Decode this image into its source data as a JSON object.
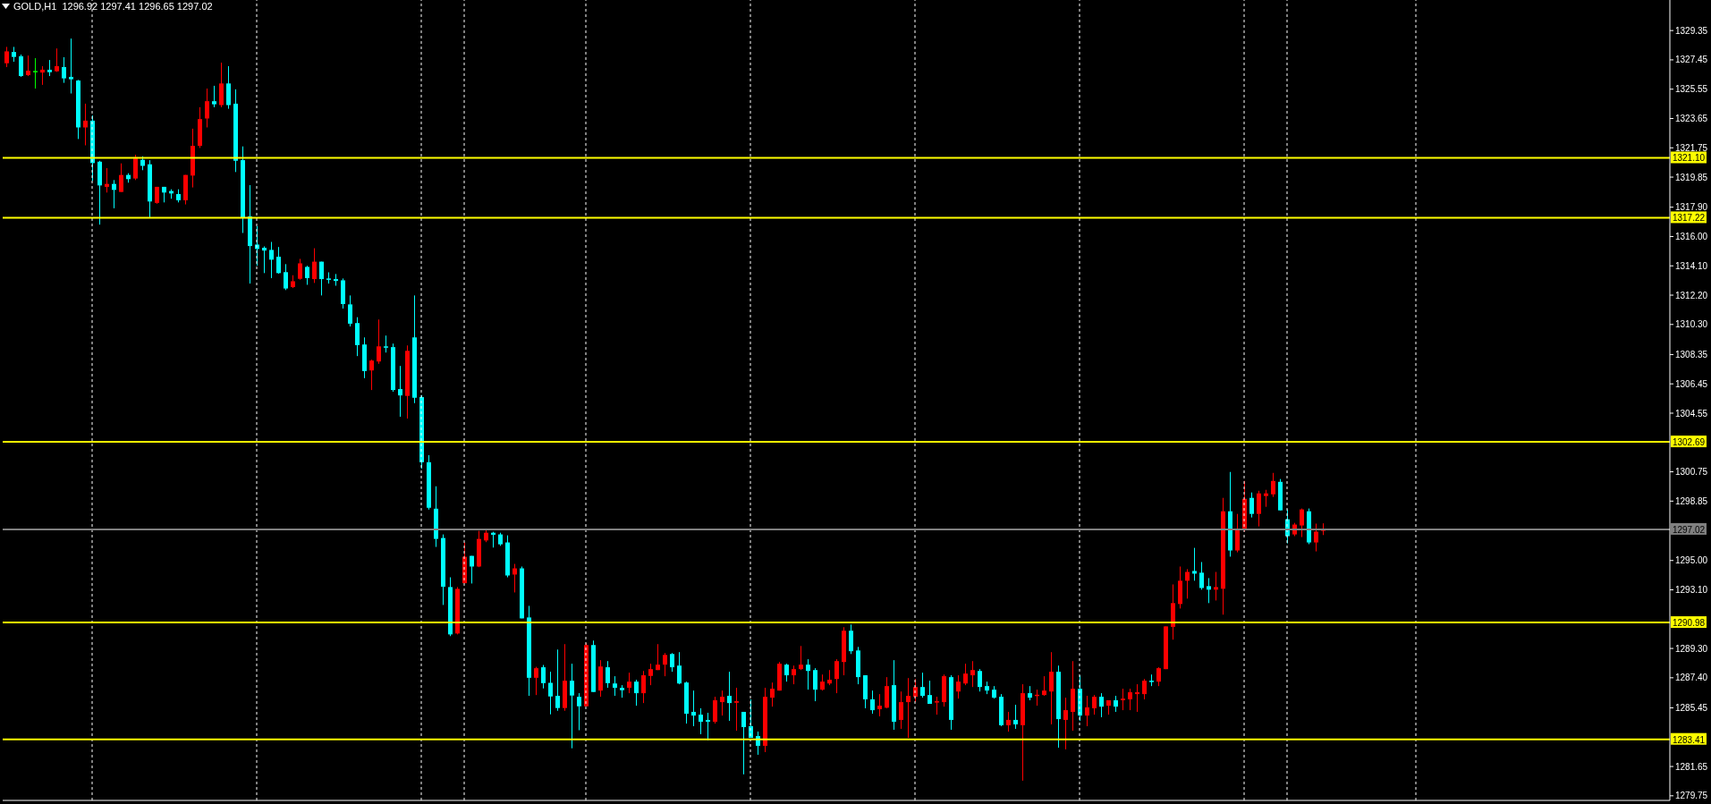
{
  "chart_data": {
    "type": "candlestick",
    "title": "GOLD,H1  1296.92 1297.41 1296.65 1297.02",
    "categories": [
      null,
      null,
      null,
      null,
      null,
      null,
      null,
      null,
      null,
      null,
      null,
      null,
      null,
      null,
      null,
      null,
      null,
      null,
      null,
      null,
      null,
      null,
      null,
      null,
      null,
      null,
      null,
      null,
      null,
      null,
      null,
      null,
      null,
      null,
      null,
      null,
      null,
      null,
      null,
      null,
      null,
      null,
      null,
      null,
      null,
      null,
      null,
      null,
      null,
      null,
      null,
      null,
      null,
      null,
      null,
      null,
      null,
      null,
      null,
      null,
      null,
      null,
      null,
      null,
      null,
      null,
      null,
      null,
      null,
      null,
      null,
      null,
      null,
      null,
      null,
      null,
      null,
      null,
      null,
      null,
      null,
      null,
      null,
      null,
      null,
      null,
      null,
      null,
      null,
      null,
      null,
      null,
      null,
      null,
      null,
      null,
      null,
      null,
      null,
      null,
      null,
      null,
      null,
      null,
      null,
      null,
      null,
      null,
      null,
      null,
      null,
      null,
      null,
      null,
      null,
      null,
      null,
      null,
      null,
      null,
      null,
      null,
      null,
      null,
      null,
      null,
      null,
      null,
      null,
      null,
      null,
      null,
      null,
      null,
      null,
      null,
      null,
      null,
      null,
      null,
      null,
      null,
      null,
      null,
      null,
      null,
      null,
      null,
      null,
      null,
      null,
      null,
      null,
      null,
      null,
      null,
      null,
      null,
      null,
      null,
      null,
      null,
      null,
      null,
      null,
      null,
      null,
      null,
      null,
      null,
      null,
      null,
      null,
      null,
      null,
      null,
      null,
      null,
      null,
      null,
      null,
      null,
      null,
      null,
      null,
      null,
      null,
      null,
      null,
      null,
      null,
      null,
      null,
      null,
      null,
      null,
      null,
      null,
      null,
      null,
      null,
      null,
      null,
      null,
      null,
      null,
      null,
      null,
      null,
      null,
      null,
      null,
      null,
      null,
      null,
      null,
      null,
      null,
      null,
      null,
      null,
      null,
      null,
      null,
      null,
      null,
      null,
      null,
      null,
      null,
      null,
      null,
      null
    ],
    "ohlc": [
      [
        1327.23,
        1328.29,
        1326.98,
        1328.0
      ],
      [
        1327.96,
        1328.29,
        1327.33,
        1327.64
      ],
      [
        1327.68,
        1327.79,
        1326.35,
        1326.4
      ],
      [
        1326.46,
        1327.73,
        1326.4,
        1326.75
      ],
      [
        1326.73,
        1327.56,
        1325.59,
        1326.73
      ],
      [
        1326.63,
        1327.04,
        1325.83,
        1326.81
      ],
      [
        1326.81,
        1327.44,
        1326.4,
        1326.65
      ],
      [
        1326.71,
        1328.19,
        1326.67,
        1327.04
      ],
      [
        1326.98,
        1327.62,
        1325.96,
        1326.25
      ],
      [
        1326.35,
        1328.83,
        1325.27,
        1326.19
      ],
      [
        1326.11,
        1326.15,
        1322.32,
        1323.07
      ],
      [
        1323.07,
        1324.61,
        1321.91,
        1323.51
      ],
      [
        1323.51,
        1323.84,
        1319.6,
        1320.76
      ],
      [
        1320.85,
        1320.91,
        1316.77,
        1319.31
      ],
      [
        1319.22,
        1320.43,
        1318.85,
        1319.41
      ],
      [
        1319.41,
        1319.66,
        1317.83,
        1319.02
      ],
      [
        1318.89,
        1320.74,
        1318.89,
        1319.99
      ],
      [
        1319.99,
        1320.1,
        1319.49,
        1319.72
      ],
      [
        1319.76,
        1321.3,
        1319.66,
        1321.14
      ],
      [
        1320.97,
        1321.2,
        1320.3,
        1320.58
      ],
      [
        1320.68,
        1320.95,
        1317.21,
        1318.27
      ],
      [
        1318.18,
        1319.22,
        1318.12,
        1319.22
      ],
      [
        1319.22,
        1319.22,
        1318.21,
        1318.85
      ],
      [
        1318.95,
        1319.06,
        1318.45,
        1318.79
      ],
      [
        1318.75,
        1319.06,
        1318.21,
        1318.35
      ],
      [
        1318.35,
        1319.99,
        1318.08,
        1319.99
      ],
      [
        1319.95,
        1322.99,
        1319.18,
        1321.88
      ],
      [
        1321.88,
        1324.38,
        1321.74,
        1323.61
      ],
      [
        1323.65,
        1325.59,
        1323.07,
        1324.77
      ],
      [
        1324.77,
        1325.77,
        1324.38,
        1324.57
      ],
      [
        1324.52,
        1327.27,
        1324.38,
        1325.92
      ],
      [
        1325.92,
        1327.04,
        1324.28,
        1324.52
      ],
      [
        1324.61,
        1325.54,
        1320.18,
        1320.91
      ],
      [
        1320.95,
        1321.84,
        1316.23,
        1317.19
      ],
      [
        1317.31,
        1319.33,
        1312.95,
        1315.38
      ],
      [
        1315.48,
        1316.67,
        1314.11,
        1315.19
      ],
      [
        1315.27,
        1315.36,
        1313.63,
        1315.09
      ],
      [
        1315.13,
        1315.65,
        1313.3,
        1314.5
      ],
      [
        1314.69,
        1315.32,
        1313.59,
        1313.63
      ],
      [
        1313.69,
        1314.21,
        1312.53,
        1312.63
      ],
      [
        1312.72,
        1313.49,
        1312.66,
        1313.1
      ],
      [
        1313.26,
        1314.55,
        1313.2,
        1314.26
      ],
      [
        1314.03,
        1314.1,
        1312.87,
        1313.3
      ],
      [
        1313.24,
        1315.24,
        1312.99,
        1314.37
      ],
      [
        1314.37,
        1314.37,
        1312.18,
        1313.24
      ],
      [
        1313.28,
        1313.68,
        1312.95,
        1313.2
      ],
      [
        1313.24,
        1313.57,
        1312.81,
        1313.12
      ],
      [
        1313.16,
        1313.28,
        1311.33,
        1311.62
      ],
      [
        1311.6,
        1312.18,
        1310.17,
        1310.35
      ],
      [
        1310.39,
        1310.77,
        1308.25,
        1308.96
      ],
      [
        1309.0,
        1309.46,
        1306.82,
        1307.28
      ],
      [
        1307.32,
        1308.02,
        1306.05,
        1307.96
      ],
      [
        1307.9,
        1310.62,
        1307.75,
        1308.88
      ],
      [
        1308.88,
        1309.58,
        1308.48,
        1308.81
      ],
      [
        1308.83,
        1309.06,
        1305.94,
        1306.05
      ],
      [
        1306.11,
        1307.61,
        1304.32,
        1305.7
      ],
      [
        1305.67,
        1308.94,
        1304.2,
        1308.59
      ],
      [
        1309.46,
        1312.18,
        1305.2,
        1305.55
      ],
      [
        1305.59,
        1305.72,
        1300.96,
        1301.37
      ],
      [
        1301.37,
        1301.83,
        1298.3,
        1298.42
      ],
      [
        1298.36,
        1299.81,
        1295.88,
        1296.4
      ],
      [
        1296.46,
        1296.69,
        1292.12,
        1293.3
      ],
      [
        1293.28,
        1293.91,
        1290.1,
        1290.21
      ],
      [
        1290.27,
        1293.28,
        1290.21,
        1293.16
      ],
      [
        1293.53,
        1296.17,
        1293.53,
        1295.24
      ],
      [
        1295.3,
        1295.3,
        1293.51,
        1294.61
      ],
      [
        1294.61,
        1296.92,
        1294.57,
        1296.4
      ],
      [
        1296.3,
        1297.03,
        1296.19,
        1296.8
      ],
      [
        1296.8,
        1296.86,
        1295.84,
        1296.67
      ],
      [
        1296.69,
        1296.8,
        1295.95,
        1296.05
      ],
      [
        1296.17,
        1296.63,
        1293.91,
        1294.03
      ],
      [
        1294.09,
        1294.78,
        1292.93,
        1294.49
      ],
      [
        1294.49,
        1294.61,
        1291.25,
        1291.25
      ],
      [
        1291.31,
        1292.06,
        1286.23,
        1287.4
      ],
      [
        1287.4,
        1288.11,
        1286.28,
        1288.02
      ],
      [
        1288.08,
        1288.23,
        1286.71,
        1287.05
      ],
      [
        1287.07,
        1287.79,
        1285.03,
        1286.19
      ],
      [
        1286.23,
        1289.23,
        1285.26,
        1285.44
      ],
      [
        1285.44,
        1289.58,
        1285.26,
        1287.21
      ],
      [
        1287.21,
        1288.31,
        1282.83,
        1286.25
      ],
      [
        1286.17,
        1286.4,
        1284.0,
        1285.55
      ],
      [
        1285.55,
        1289.64,
        1285.55,
        1289.52
      ],
      [
        1289.52,
        1289.81,
        1286.48,
        1286.48
      ],
      [
        1286.57,
        1288.54,
        1286.17,
        1288.13
      ],
      [
        1288.08,
        1288.48,
        1286.75,
        1287.05
      ],
      [
        1287.03,
        1287.5,
        1286.23,
        1286.75
      ],
      [
        1286.75,
        1286.92,
        1286.11,
        1286.59
      ],
      [
        1286.75,
        1287.73,
        1286.4,
        1287.15
      ],
      [
        1287.15,
        1287.27,
        1285.59,
        1286.4
      ],
      [
        1286.4,
        1287.84,
        1285.76,
        1287.56
      ],
      [
        1287.52,
        1288.31,
        1286.92,
        1287.96
      ],
      [
        1287.9,
        1289.58,
        1287.9,
        1288.25
      ],
      [
        1288.25,
        1289.0,
        1287.5,
        1288.88
      ],
      [
        1288.94,
        1289.0,
        1287.79,
        1288.08
      ],
      [
        1288.19,
        1289.06,
        1286.98,
        1287.03
      ],
      [
        1287.09,
        1287.15,
        1284.43,
        1285.07
      ],
      [
        1285.19,
        1286.57,
        1284.26,
        1284.95
      ],
      [
        1285.01,
        1285.42,
        1283.74,
        1284.55
      ],
      [
        1284.67,
        1285.13,
        1283.36,
        1284.55
      ],
      [
        1284.55,
        1286.17,
        1284.43,
        1285.94
      ],
      [
        1285.82,
        1286.57,
        1284.95,
        1286.17
      ],
      [
        1286.23,
        1287.79,
        1284.61,
        1285.76
      ],
      [
        1285.78,
        1286.75,
        1283.97,
        1285.88
      ],
      [
        1285.19,
        1285.19,
        1281.14,
        1284.2
      ],
      [
        1284.26,
        1286.0,
        1283.51,
        1283.51
      ],
      [
        1283.62,
        1283.91,
        1282.41,
        1282.99
      ],
      [
        1282.99,
        1286.75,
        1282.58,
        1286.17
      ],
      [
        1286.11,
        1287.09,
        1285.53,
        1286.69
      ],
      [
        1286.57,
        1288.42,
        1286.57,
        1288.31
      ],
      [
        1288.25,
        1288.31,
        1287.15,
        1287.56
      ],
      [
        1287.56,
        1288.19,
        1286.98,
        1287.96
      ],
      [
        1287.96,
        1289.46,
        1287.9,
        1288.25
      ],
      [
        1288.25,
        1288.6,
        1286.63,
        1287.84
      ],
      [
        1287.9,
        1288.02,
        1285.88,
        1286.63
      ],
      [
        1286.63,
        1287.61,
        1286.57,
        1287.15
      ],
      [
        1287.03,
        1287.9,
        1286.92,
        1287.27
      ],
      [
        1287.32,
        1288.6,
        1286.4,
        1288.48
      ],
      [
        1288.42,
        1290.68,
        1287.56,
        1290.45
      ],
      [
        1290.45,
        1290.85,
        1288.94,
        1289.12
      ],
      [
        1289.17,
        1289.4,
        1286.98,
        1287.44
      ],
      [
        1287.56,
        1287.56,
        1285.42,
        1286.0
      ],
      [
        1286.0,
        1286.57,
        1285.07,
        1285.3
      ],
      [
        1285.36,
        1286.34,
        1284.9,
        1285.59
      ],
      [
        1285.46,
        1287.44,
        1285.42,
        1286.86
      ],
      [
        1286.92,
        1288.54,
        1284.03,
        1284.55
      ],
      [
        1284.67,
        1286.51,
        1284.09,
        1285.82
      ],
      [
        1285.82,
        1287.38,
        1283.51,
        1286.23
      ],
      [
        1286.17,
        1287.32,
        1285.82,
        1286.8
      ],
      [
        1286.8,
        1287.73,
        1286.11,
        1286.23
      ],
      [
        1286.28,
        1287.21,
        1285.71,
        1285.71
      ],
      [
        1285.84,
        1286.17,
        1285.01,
        1285.88
      ],
      [
        1285.82,
        1287.61,
        1285.53,
        1287.5
      ],
      [
        1287.44,
        1287.56,
        1284.03,
        1284.67
      ],
      [
        1286.51,
        1287.56,
        1286.05,
        1287.15
      ],
      [
        1287.03,
        1288.31,
        1286.92,
        1287.67
      ],
      [
        1287.56,
        1288.48,
        1286.8,
        1287.9
      ],
      [
        1287.84,
        1287.96,
        1286.51,
        1286.8
      ],
      [
        1286.86,
        1287.15,
        1286.34,
        1286.57
      ],
      [
        1286.63,
        1286.86,
        1286.05,
        1286.11
      ],
      [
        1286.17,
        1286.34,
        1284.26,
        1284.32
      ],
      [
        1284.32,
        1285.19,
        1283.91,
        1284.67
      ],
      [
        1284.67,
        1285.65,
        1284.09,
        1284.38
      ],
      [
        1284.32,
        1286.98,
        1280.73,
        1286.4
      ],
      [
        1286.4,
        1286.86,
        1285.94,
        1286.11
      ],
      [
        1286.26,
        1286.63,
        1285.59,
        1286.3
      ],
      [
        1286.28,
        1287.5,
        1286.23,
        1286.57
      ],
      [
        1286.51,
        1289.06,
        1284.38,
        1287.79
      ],
      [
        1287.79,
        1288.19,
        1282.87,
        1284.72
      ],
      [
        1284.67,
        1286.11,
        1282.76,
        1285.3
      ],
      [
        1285.19,
        1288.48,
        1283.97,
        1286.69
      ],
      [
        1286.69,
        1287.56,
        1284.61,
        1284.95
      ],
      [
        1284.95,
        1286.23,
        1284.26,
        1285.48
      ],
      [
        1285.42,
        1286.28,
        1285.01,
        1286.17
      ],
      [
        1286.17,
        1286.4,
        1284.84,
        1285.53
      ],
      [
        1285.59,
        1285.94,
        1285.01,
        1285.94
      ],
      [
        1285.94,
        1286.23,
        1285.19,
        1285.53
      ],
      [
        1285.94,
        1286.69,
        1285.3,
        1286.05
      ],
      [
        1286.0,
        1286.69,
        1285.3,
        1286.46
      ],
      [
        1286.34,
        1286.98,
        1285.19,
        1286.46
      ],
      [
        1286.34,
        1287.32,
        1286.0,
        1287.21
      ],
      [
        1287.21,
        1287.61,
        1286.86,
        1287.17
      ],
      [
        1287.15,
        1288.08,
        1286.86,
        1288.02
      ],
      [
        1287.96,
        1290.73,
        1287.96,
        1290.73
      ],
      [
        1290.7,
        1293.45,
        1289.87,
        1292.24
      ],
      [
        1292.18,
        1294.61,
        1291.89,
        1293.69
      ],
      [
        1293.69,
        1294.44,
        1292.53,
        1294.26
      ],
      [
        1294.32,
        1295.82,
        1293.69,
        1294.15
      ],
      [
        1294.21,
        1294.9,
        1293.11,
        1293.22
      ],
      [
        1293.34,
        1293.86,
        1292.24,
        1293.11
      ],
      [
        1293.11,
        1294.26,
        1292.41,
        1293.28
      ],
      [
        1293.17,
        1299.06,
        1291.49,
        1298.19
      ],
      [
        1298.19,
        1300.74,
        1295.25,
        1295.65
      ],
      [
        1295.65,
        1298.02,
        1295.53,
        1297.04
      ],
      [
        1296.98,
        1300.16,
        1296.87,
        1299.0
      ],
      [
        1299.06,
        1299.41,
        1297.79,
        1298.02
      ],
      [
        1298.02,
        1299.52,
        1297.21,
        1299.35
      ],
      [
        1299.18,
        1299.58,
        1298.48,
        1299.35
      ],
      [
        1299.29,
        1300.68,
        1299.12,
        1300.16
      ],
      [
        1300.1,
        1300.28,
        1298.25,
        1298.25
      ],
      [
        1297.67,
        1298.31,
        1296.11,
        1296.58
      ],
      [
        1296.69,
        1297.44,
        1296.58,
        1297.33
      ],
      [
        1297.27,
        1298.37,
        1296.52,
        1298.31
      ],
      [
        1298.19,
        1298.37,
        1296.06,
        1296.17
      ],
      [
        1296.17,
        1297.39,
        1295.59,
        1296.87
      ],
      [
        1296.92,
        1297.41,
        1296.65,
        1297.02
      ],
      null,
      null,
      null,
      null,
      null,
      null,
      null,
      null,
      null,
      null,
      null,
      null,
      null,
      null,
      null,
      null,
      null,
      null,
      null,
      null,
      null,
      null,
      null,
      null,
      null,
      null,
      null,
      null,
      null,
      null,
      null,
      null,
      null,
      null,
      null,
      null,
      null,
      null,
      null,
      null,
      null,
      null,
      null,
      null,
      null,
      null,
      null,
      null
    ],
    "colors": [
      "#ff0000",
      "#00ffff",
      "#00ffff",
      "#ff0000",
      "#00ff00",
      "#ff0000",
      "#00ffff",
      "#ff0000",
      "#00ffff",
      "#00ffff",
      "#00ffff",
      "#ff0000",
      "#00ffff",
      "#00ffff",
      "#ff0000",
      "#00ffff",
      "#ff0000",
      "#00ffff",
      "#ff0000",
      "#00ffff",
      "#00ffff",
      "#ff0000",
      "#00ffff",
      "#00ffff",
      "#00ffff",
      "#ff0000",
      "#ff0000",
      "#ff0000",
      "#ff0000",
      "#00ffff",
      "#ff0000",
      "#00ffff",
      "#00ffff",
      "#00ffff",
      "#00ffff",
      "#00ffff",
      "#00ffff",
      "#00ffff",
      "#00ffff",
      "#00ffff",
      "#ff0000",
      "#ff0000",
      "#00ffff",
      "#ff0000",
      "#00ffff",
      "#00ffff",
      "#00ffff",
      "#00ffff",
      "#00ffff",
      "#00ffff",
      "#00ffff",
      "#ff0000",
      "#ff0000",
      "#00ffff",
      "#00ffff",
      "#00ffff",
      "#ff0000",
      "#00ffff",
      "#00ffff",
      "#00ffff",
      "#00ffff",
      "#00ffff",
      "#00ffff",
      "#ff0000",
      "#ff0000",
      "#00ffff",
      "#ff0000",
      "#ff0000",
      "#00ffff",
      "#00ffff",
      "#00ffff",
      "#ff0000",
      "#00ffff",
      "#00ffff",
      "#ff0000",
      "#00ffff",
      "#00ffff",
      "#00ffff",
      "#ff0000",
      "#00ffff",
      "#00ffff",
      "#ff0000",
      "#00ffff",
      "#ff0000",
      "#00ffff",
      "#00ffff",
      "#00ffff",
      "#ff0000",
      "#00ffff",
      "#ff0000",
      "#ff0000",
      "#ff0000",
      "#ff0000",
      "#00ffff",
      "#00ffff",
      "#00ffff",
      "#00ffff",
      "#00ffff",
      "#00ffff",
      "#ff0000",
      "#ff0000",
      "#00ffff",
      "#ff0000",
      "#00ffff",
      "#00ffff",
      "#00ffff",
      "#ff0000",
      "#ff0000",
      "#ff0000",
      "#00ffff",
      "#ff0000",
      "#ff0000",
      "#00ffff",
      "#00ffff",
      "#ff0000",
      "#ff0000",
      "#ff0000",
      "#ff0000",
      "#00ffff",
      "#00ffff",
      "#00ffff",
      "#00ffff",
      "#ff0000",
      "#ff0000",
      "#00ffff",
      "#ff0000",
      "#ff0000",
      "#ff0000",
      "#00ffff",
      "#00ffff",
      "#ff0000",
      "#ff0000",
      "#00ffff",
      "#ff0000",
      "#ff0000",
      "#ff0000",
      "#00ffff",
      "#00ffff",
      "#00ffff",
      "#00ffff",
      "#ff0000",
      "#00ffff",
      "#ff0000",
      "#00ffff",
      "#ff0000",
      "#ff0000",
      "#ff0000",
      "#00ffff",
      "#ff0000",
      "#ff0000",
      "#00ffff",
      "#ff0000",
      "#ff0000",
      "#00ffff",
      "#ff0000",
      "#00ffff",
      "#ff0000",
      "#ff0000",
      "#ff0000",
      "#ff0000",
      "#00ffff",
      "#ff0000",
      "#ff0000",
      "#ff0000",
      "#ff0000",
      "#ff0000",
      "#00ffff",
      "#00ffff",
      "#00ffff",
      "#ff0000",
      "#ff0000",
      "#00ffff",
      "#ff0000",
      "#ff0000",
      "#00ffff",
      "#ff0000",
      "#ff0000",
      "#ff0000",
      "#00ffff",
      "#00ffff",
      "#ff0000",
      "#ff0000",
      "#00ffff",
      "#ff0000",
      "#ff0000",
      null,
      null,
      null,
      null,
      null,
      null,
      null,
      null,
      null,
      null,
      null,
      null,
      null,
      null,
      null,
      null,
      null,
      null,
      null,
      null,
      null,
      null,
      null,
      null,
      null,
      null,
      null,
      null,
      null,
      null,
      null,
      null,
      null,
      null,
      null,
      null,
      null,
      null,
      null,
      null,
      null,
      null,
      null,
      null,
      null,
      null,
      null,
      null
    ],
    "ylim": [
      1279.45,
      1331.33
    ],
    "yticks": [
      1329.35,
      1327.45,
      1325.55,
      1323.65,
      1321.75,
      1319.85,
      {
        "value": 1317.9,
        "label": "1317.90"
      },
      {
        "value": 1316,
        "label": "1316.00"
      },
      {
        "value": 1314.1,
        "label": "1314.10"
      },
      {
        "value": 1312.2,
        "label": "1312.20"
      },
      {
        "value": 1310.3,
        "label": "1310.30"
      },
      1308.35,
      1306.45,
      1304.55,
      1300.75,
      1298.85,
      {
        "value": 1295,
        "label": "1295.00"
      },
      {
        "value": 1293.1,
        "label": "1293.10"
      },
      {
        "value": 1289.3,
        "label": "1289.30"
      },
      {
        "value": 1287.4,
        "label": "1287.40"
      },
      1285.45,
      1281.65,
      1279.75
    ],
    "ref_lines": [
      {
        "axis": "y",
        "value": 1321.1,
        "label": "1321.10",
        "color": "#ffff00"
      },
      {
        "axis": "y",
        "value": 1317.22,
        "label": "1317.22",
        "color": "#ffff00"
      },
      {
        "axis": "y",
        "value": 1302.69,
        "label": "1302.69",
        "color": "#ffff00"
      },
      {
        "axis": "y",
        "value": 1297.02,
        "label": "1297.02",
        "color": "#808080"
      },
      {
        "axis": "y",
        "value": 1290.98,
        "label": "1290.98",
        "color": "#ffff00"
      },
      {
        "axis": "y",
        "value": 1283.41,
        "label": "1283.41",
        "color": "#ffff00"
      }
    ],
    "tick_labels": "y"
  }
}
